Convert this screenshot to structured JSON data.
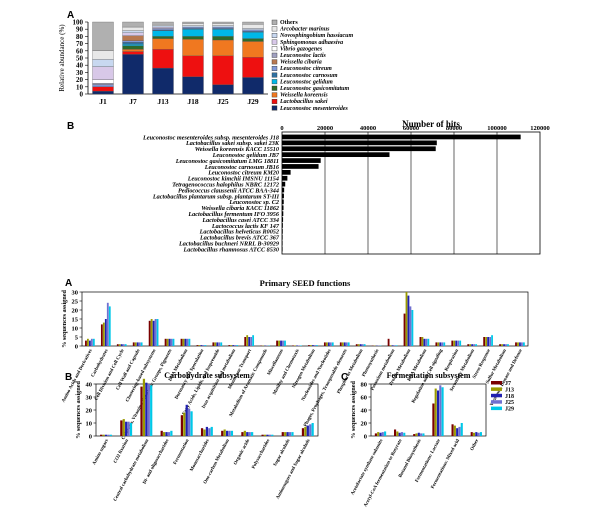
{
  "colors": {
    "Others": "#b0b0b0",
    "Arcobacter marinus": "#e8e8e8",
    "Novosphingobium hassiacum": "#c8d8f0",
    "Sphingomonas adhaesiva": "#d8c8e8",
    "Vibrio gazogenes": "#ffffff",
    "Leuconostoc lactis": "#a0a0c0",
    "Weissella cibaria": "#b87850",
    "Leuconostoc citreum": "#8098d8",
    "Leuconostoc carnosum": "#3070a0",
    "Leuconostoc gelidum": "#00b8e8",
    "Leuconostoc gasicomitatum": "#2f6a2a",
    "Weissella koreensis": "#f07820",
    "Lactobacillus sakei": "#ee1010",
    "Leuconostoc mesenteroides": "#102a6a",
    "J7": "#7a0000",
    "J13": "#9a9a00",
    "J18": "#2020b0",
    "J25": "#7070d0",
    "J29": "#00c8e8"
  },
  "chart_data": [
    {
      "panel": "A",
      "type": "bar",
      "stacked": true,
      "ylabel": "Relative abundance (%)",
      "ylim": [
        0,
        100
      ],
      "yticks": [
        0,
        10,
        20,
        30,
        40,
        50,
        60,
        70,
        80,
        90,
        100
      ],
      "categories": [
        "J1",
        "J7",
        "J13",
        "J18",
        "J25",
        "J29"
      ],
      "series": [
        {
          "name": "Leuconostoc mesenteroides",
          "values": [
            4,
            55,
            36,
            24,
            13,
            23
          ]
        },
        {
          "name": "Lactobacillus sakei",
          "values": [
            6,
            4,
            26,
            29,
            40,
            28
          ]
        },
        {
          "name": "Weissella koreensis",
          "values": [
            0,
            3,
            15,
            23,
            22,
            22
          ]
        },
        {
          "name": "Leuconostoc gasicomitatum",
          "values": [
            0,
            5,
            3,
            4,
            5,
            4
          ]
        },
        {
          "name": "Leuconostoc gelidum",
          "values": [
            0,
            2,
            8,
            10,
            10,
            9
          ]
        },
        {
          "name": "Leuconostoc carnosum",
          "values": [
            0,
            3,
            1,
            1,
            1,
            1
          ]
        },
        {
          "name": "Leuconostoc citreum",
          "values": [
            3,
            2,
            2,
            2,
            2,
            2
          ]
        },
        {
          "name": "Weissella cibaria",
          "values": [
            0,
            7,
            0,
            0,
            0,
            0
          ]
        },
        {
          "name": "Leuconostoc lactis",
          "values": [
            2,
            0,
            0,
            0,
            0,
            0
          ]
        },
        {
          "name": "Vibrio gazogenes",
          "values": [
            5,
            0,
            0,
            0,
            0,
            0
          ]
        },
        {
          "name": "Sphingomonas adhaesiva",
          "values": [
            18,
            4,
            2,
            0,
            0,
            0
          ]
        },
        {
          "name": "Novosphingobium hassiacum",
          "values": [
            10,
            3,
            2,
            2,
            2,
            2
          ]
        },
        {
          "name": "Arcobacter marinus",
          "values": [
            12,
            5,
            2,
            3,
            3,
            6
          ]
        },
        {
          "name": "Others",
          "values": [
            40,
            7,
            3,
            2,
            2,
            3
          ]
        }
      ]
    },
    {
      "panel": "B",
      "type": "bar",
      "orientation": "horizontal",
      "title": "Number of hits",
      "xlim": [
        0,
        120000
      ],
      "xticks": [
        "0",
        "20000",
        "40000",
        "60000",
        "80000",
        "100000",
        "120000"
      ],
      "categories": [
        "Leuconostoc mesenteroides subsp. mesenteroides J18",
        "Lactobacillus sakei subsp. sakei 23K",
        "Weissella koreensis KACC 15510",
        "Leuconostoc gelidum JB7",
        "Leuconostoc gasicomitatum LMG 18811",
        "Leuconostoc carnosum JB16",
        "Leuconostoc citreum KM20",
        "Leuconostoc kimchii IMSNU 11154",
        "Tetragenococcus halophilus NBRC 12172",
        "Pediococcus claussenii ATCC BAA-344",
        "Lactobacillus plantarum subsp. plantarum ST-III",
        "Leuconostoc sp. C2",
        "Weissella cibaria KACC 11862",
        "Lactobacillus fermentum IFO 3956",
        "Lactobacillus casei ATCC 334",
        "Lactococcus lactis KF 147",
        "Lactobacillus helveticus R0052",
        "Lactobacillus brevis ATCC 367",
        "Lactobacillus buchneri NRRL B-30929",
        "Lactobacillus rhamnosus ATCC 8530"
      ],
      "values": [
        111000,
        72000,
        71500,
        50000,
        18000,
        17000,
        4000,
        2500,
        1500,
        1000,
        900,
        800,
        700,
        600,
        500,
        400,
        350,
        300,
        250,
        200
      ]
    },
    {
      "panel": "A",
      "type": "bar",
      "title": "Primary SEED functions",
      "ylabel": "% sequences assigned",
      "ylim": [
        0,
        30
      ],
      "yticks": [
        0,
        5,
        10,
        15,
        20,
        25,
        30
      ],
      "categories": [
        "Amino Acids and Derivatives",
        "Carbohydrates",
        "Cell Division and Cell Cycle",
        "Cell Wall and Capsule",
        "Clustering-based subsystems",
        "Cofactors, Vitamins, Prosthetic Groups, Pigments",
        "DNA Metabolism",
        "Dormancy and Sporulation",
        "Fatty Acids, Lipids, and Isoprenoids",
        "Iron acquisition and metabolism",
        "Membrane Transport",
        "Metabolism of Aromatic Compounds",
        "Miscellaneous",
        "Motility and Chemotaxis",
        "Nitrogen Metabolism",
        "Nucleosides and Nucleotides",
        "Phages, Prophages, Transposable elements",
        "Phosphorus Metabolism",
        "Photosynthesis",
        "Potassium metabolism",
        "Protein Metabolism",
        "RNA Metabolism",
        "Regulation and Cell signaling",
        "Respiration",
        "Secondary Metabolism",
        "Stress Response",
        "Sulfur Metabolism",
        "Virulence, Disease and Defense"
      ],
      "series": [
        {
          "name": "J7",
          "values": [
            3,
            12,
            1,
            2,
            14,
            4,
            4,
            0.5,
            2,
            0.5,
            5,
            0.2,
            3,
            0.3,
            0.5,
            2,
            2,
            1,
            0.2,
            4,
            18,
            5,
            2,
            3,
            1,
            5,
            1,
            2
          ]
        },
        {
          "name": "J13",
          "values": [
            4,
            13,
            1,
            2,
            15,
            4,
            4,
            0.5,
            2,
            0.5,
            6,
            0.2,
            3,
            0.3,
            0.5,
            2,
            2,
            1,
            0.2,
            0.4,
            30,
            5,
            2,
            3,
            1,
            5,
            1,
            2
          ]
        },
        {
          "name": "J18",
          "values": [
            3,
            15,
            1,
            2,
            14,
            4,
            4,
            0.5,
            2,
            0.5,
            5,
            0.2,
            3,
            0.3,
            0.5,
            2,
            2,
            1,
            0.2,
            0.4,
            28,
            4,
            2,
            3,
            1,
            5,
            1,
            2
          ]
        },
        {
          "name": "J25",
          "values": [
            4,
            24,
            1,
            2,
            15,
            4,
            4,
            0.5,
            2,
            0.5,
            5,
            0.2,
            3,
            0.3,
            0.5,
            2,
            2,
            1,
            0.2,
            0.4,
            22,
            4,
            2,
            3,
            1,
            5,
            1,
            2
          ]
        },
        {
          "name": "J29",
          "values": [
            4,
            22,
            1,
            2,
            15,
            4,
            4,
            0.5,
            2,
            0.5,
            6,
            0.2,
            3,
            0.3,
            0.5,
            2,
            2,
            1,
            0.2,
            0.4,
            20,
            4,
            2,
            3,
            1,
            6,
            1,
            2
          ]
        }
      ]
    },
    {
      "panel": "B",
      "type": "bar",
      "title": "Carbohydrate subsystem",
      "ylabel": "% sequences assigned",
      "ylim": [
        0,
        40
      ],
      "yticks": [
        0,
        10,
        20,
        30,
        40
      ],
      "categories": [
        "Amino sugars",
        "CO2 fixation",
        "Central carbohydrate metabolism",
        "Di- and oligosaccharides",
        "Fermentation",
        "Monosaccharides",
        "One-carbon Metabolism",
        "Organic acids",
        "Polysaccharides",
        "Sugar alcohols",
        "Aminosugars and Sugar alcohols"
      ],
      "series": [
        {
          "name": "J7",
          "values": [
            1,
            12,
            38,
            4,
            16,
            6,
            4,
            3,
            1,
            3,
            6
          ]
        },
        {
          "name": "J13",
          "values": [
            1,
            13,
            44,
            3,
            18,
            5,
            5,
            4,
            1,
            3,
            7
          ]
        },
        {
          "name": "J18",
          "values": [
            1,
            11,
            41,
            3,
            24,
            7,
            4,
            3,
            1,
            3,
            8
          ]
        },
        {
          "name": "J25",
          "values": [
            1,
            11,
            40,
            3,
            21,
            6,
            4,
            3,
            1,
            3,
            9
          ]
        },
        {
          "name": "J29",
          "values": [
            1,
            10,
            39,
            4,
            19,
            7,
            4,
            3,
            1,
            3,
            10
          ]
        }
      ]
    },
    {
      "panel": "C",
      "type": "bar",
      "title": "Fermentation subsystem",
      "ylabel": "% sequences assigned",
      "ylim": [
        0,
        80
      ],
      "yticks": [
        0,
        20,
        40,
        60,
        80
      ],
      "categories": [
        "Acetolactate synthase subunits",
        "Acetyl-CoA fermentation to Butyrate",
        "Butanol Biosynthesis",
        "Fermentations: Lactate",
        "Fermentations: Mixed acid",
        "Other"
      ],
      "series": [
        {
          "name": "J7",
          "values": [
            4,
            10,
            3,
            50,
            18,
            6
          ]
        },
        {
          "name": "J13",
          "values": [
            6,
            7,
            4,
            73,
            16,
            5
          ]
        },
        {
          "name": "J18",
          "values": [
            5,
            5,
            5,
            70,
            12,
            6
          ]
        },
        {
          "name": "J25",
          "values": [
            6,
            6,
            4,
            78,
            14,
            5
          ]
        },
        {
          "name": "J29",
          "values": [
            7,
            5,
            4,
            75,
            20,
            6
          ]
        }
      ]
    }
  ],
  "text": {
    "panel_a": "A",
    "panel_b": "B",
    "panel2_a": "A",
    "panel2_b": "B",
    "panel2_c": "C"
  }
}
